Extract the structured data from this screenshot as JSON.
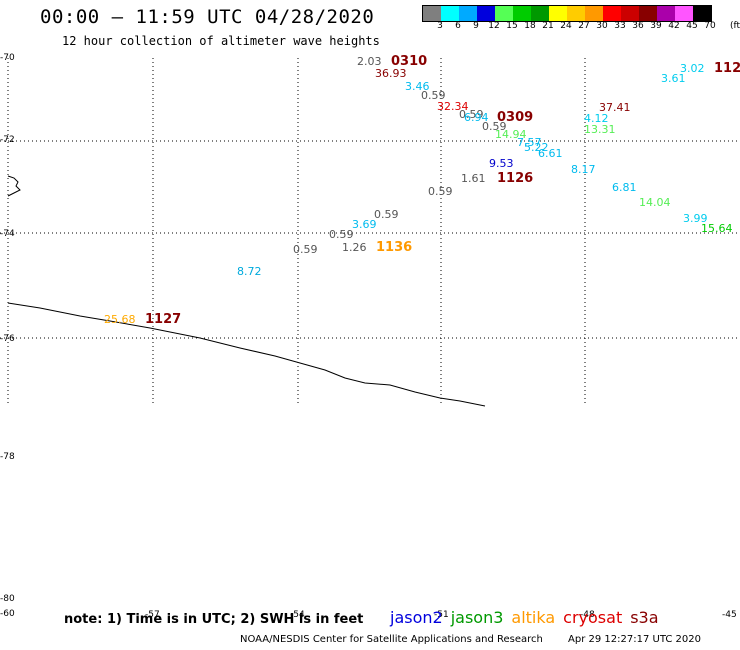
{
  "header": {
    "title": "00:00 – 11:59 UTC 04/28/2020",
    "subtitle": "12 hour collection of altimeter wave heights"
  },
  "legend": {
    "unit": "(ft)",
    "bins": [
      {
        "label": "3",
        "color": "#7f7f7f"
      },
      {
        "label": "6",
        "color": "#00ffff"
      },
      {
        "label": "9",
        "color": "#00aaff"
      },
      {
        "label": "12",
        "color": "#0000dd"
      },
      {
        "label": "15",
        "color": "#55ff55"
      },
      {
        "label": "18",
        "color": "#00cc00"
      },
      {
        "label": "21",
        "color": "#009900"
      },
      {
        "label": "24",
        "color": "#ffff00"
      },
      {
        "label": "27",
        "color": "#ffcc00"
      },
      {
        "label": "30",
        "color": "#ff9900"
      },
      {
        "label": "33",
        "color": "#ff0000"
      },
      {
        "label": "36",
        "color": "#cc0000"
      },
      {
        "label": "39",
        "color": "#880000"
      },
      {
        "label": "42",
        "color": "#aa00aa"
      },
      {
        "label": "45",
        "color": "#ff55ff"
      },
      {
        "label": "70",
        "color": "#000000"
      }
    ]
  },
  "axes": {
    "lat_labels": [
      "-70",
      "-72",
      "-74",
      "-76",
      "-78",
      "-80"
    ],
    "lon_labels": [
      "-60",
      "-57",
      "-54",
      "-51",
      "-48",
      "-45"
    ]
  },
  "observations": [
    {
      "text": "2.03",
      "color": "#555555"
    },
    {
      "text": "0310",
      "color": "#880000"
    },
    {
      "text": "36.93",
      "color": "#880000"
    },
    {
      "text": "3.46",
      "color": "#00bbee"
    },
    {
      "text": "0.59",
      "color": "#555555"
    },
    {
      "text": "32.34",
      "color": "#dd0000"
    },
    {
      "text": "0.59",
      "color": "#555555"
    },
    {
      "text": "6.94",
      "color": "#00bbee"
    },
    {
      "text": "0309",
      "color": "#880000"
    },
    {
      "text": "0.59",
      "color": "#555555"
    },
    {
      "text": "14.94",
      "color": "#55ee55"
    },
    {
      "text": "7.57",
      "color": "#00bbee"
    },
    {
      "text": "5.22",
      "color": "#00bbee"
    },
    {
      "text": "6.61",
      "color": "#00bbee"
    },
    {
      "text": "9.53",
      "color": "#0000cc"
    },
    {
      "text": "1.61",
      "color": "#555555"
    },
    {
      "text": "1126",
      "color": "#880000"
    },
    {
      "text": "0.59",
      "color": "#555555"
    },
    {
      "text": "0.59",
      "color": "#555555"
    },
    {
      "text": "3.69",
      "color": "#00bbee"
    },
    {
      "text": "0.59",
      "color": "#555555"
    },
    {
      "text": "0.59",
      "color": "#555555"
    },
    {
      "text": "1.26",
      "color": "#555555"
    },
    {
      "text": "1136",
      "color": "#ff9900"
    },
    {
      "text": "8.72",
      "color": "#00aadd"
    },
    {
      "text": "25.68",
      "color": "#ffaa00"
    },
    {
      "text": "1127",
      "color": "#880000"
    },
    {
      "text": "3.02",
      "color": "#00ccee"
    },
    {
      "text": "3.61",
      "color": "#00ccee"
    },
    {
      "text": "112",
      "color": "#880000"
    },
    {
      "text": "37.41",
      "color": "#880000"
    },
    {
      "text": "13.31",
      "color": "#55ee55"
    },
    {
      "text": "4.12",
      "color": "#00ccee"
    },
    {
      "text": "8.17",
      "color": "#00bbee"
    },
    {
      "text": "6.81",
      "color": "#00bbee"
    },
    {
      "text": "14.04",
      "color": "#55ee55"
    },
    {
      "text": "3.99",
      "color": "#00ccee"
    },
    {
      "text": "15.64",
      "color": "#00cc00"
    }
  ],
  "note": "note: 1) Time is in UTC; 2) SWH is in feet",
  "satellites": [
    {
      "name": "jason2",
      "color": "#0000dd"
    },
    {
      "name": "jason3",
      "color": "#009900"
    },
    {
      "name": "altika",
      "color": "#ff9900"
    },
    {
      "name": "cryosat",
      "color": "#dd0000"
    },
    {
      "name": "s3a",
      "color": "#880000"
    }
  ],
  "footer": {
    "credit": "NOAA/NESDIS Center for Satellite Applications and Research",
    "timestamp": "Apr 29 12:27:17 UTC 2020"
  }
}
